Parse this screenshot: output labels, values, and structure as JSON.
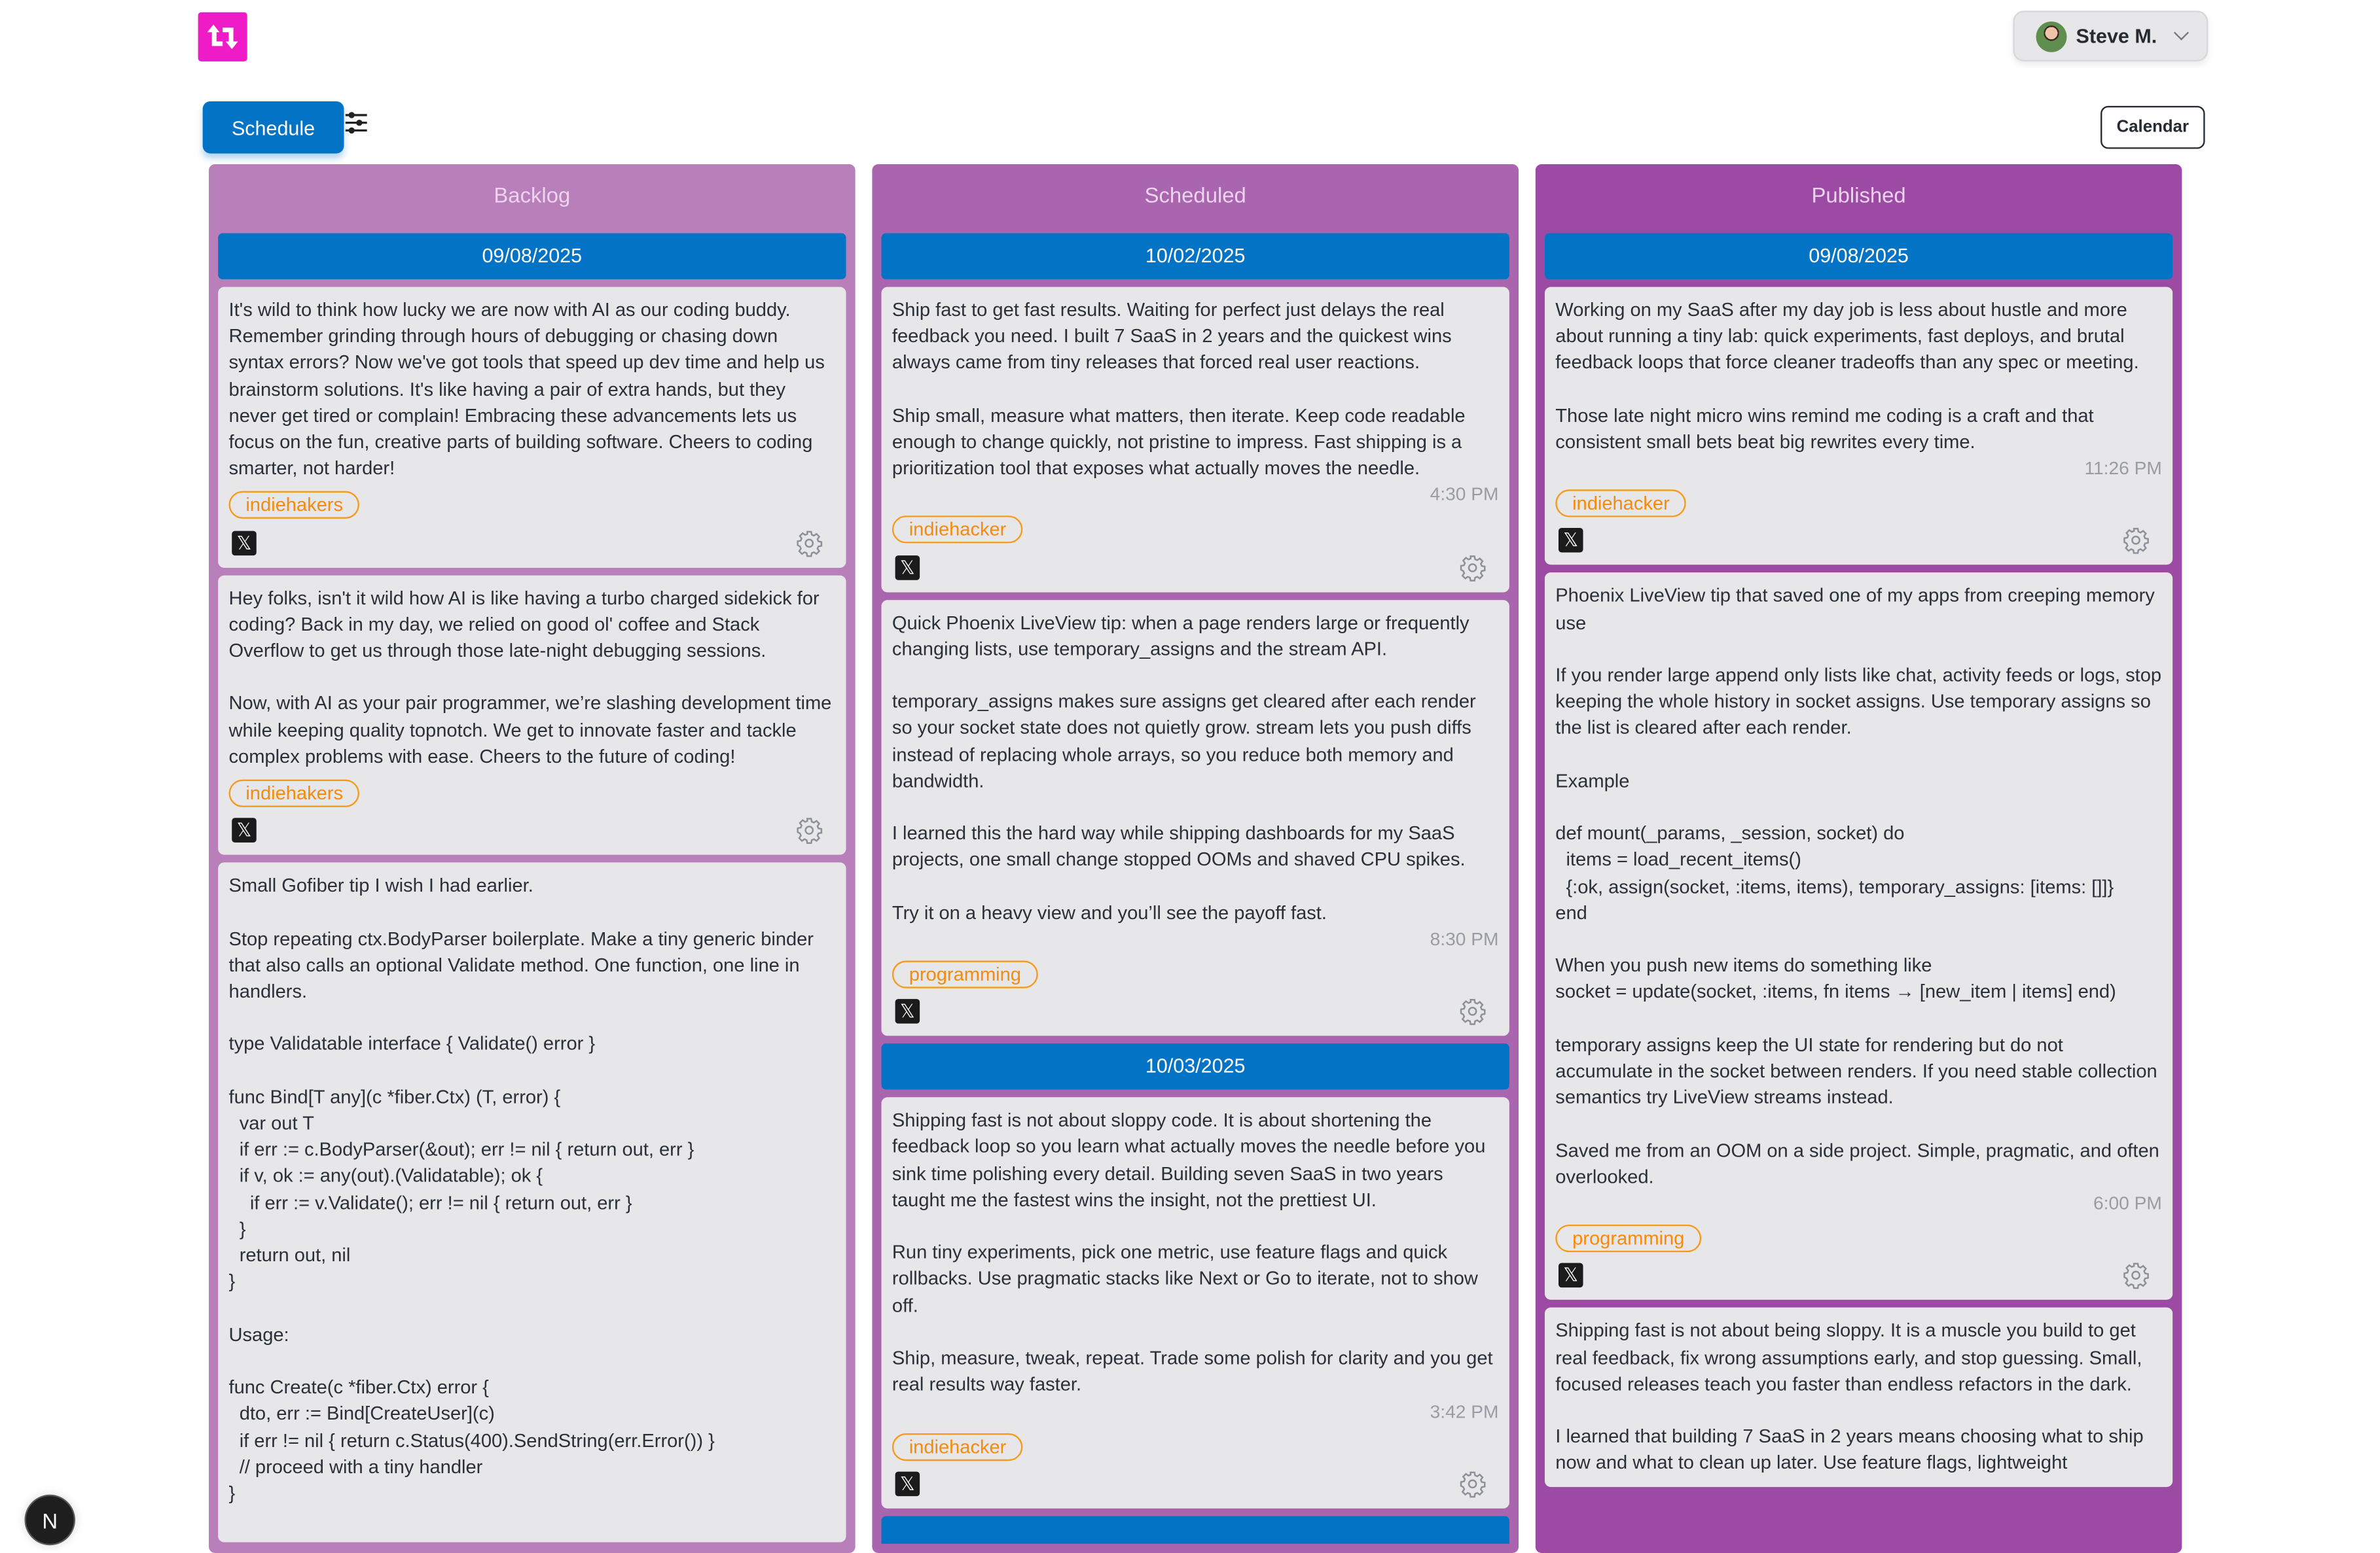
{
  "header": {
    "user_name": "Steve M.",
    "schedule_label": "Schedule",
    "calendar_label": "Calendar",
    "n_badge": "N"
  },
  "colors": {
    "backlog": "#b97fbb",
    "scheduled": "#a965ad",
    "published": "#9c4aa3",
    "date_bar": "#0373c6",
    "tag": "#f59a1b",
    "logo": "#ee1bc7"
  },
  "columns": [
    {
      "title": "Backlog",
      "groups": [
        {
          "date": "09/08/2025",
          "cards": [
            {
              "text": "It's wild to think how lucky we are now with AI as our coding buddy. Remember grinding through hours of debugging or chasing down syntax errors? Now we've got tools that speed up dev time and help us brainstorm solutions. It's like having a pair of extra hands, but they never get tired or complain! Embracing these advancements lets us focus on the fun, creative parts of building software. Cheers to coding smarter, not harder!",
              "time": "",
              "tag": "indiehakers"
            },
            {
              "text": "Hey folks, isn't it wild how AI is like having a turbo charged sidekick for coding? Back in my day, we relied on good ol' coffee and Stack Overflow to get us through those late-night debugging sessions.\n\nNow, with AI as your pair programmer, we’re slashing development time while keeping quality topnotch. We get to innovate faster and tackle complex problems with ease. Cheers to the future of coding!",
              "time": "",
              "tag": "indiehakers"
            },
            {
              "text": "Small Gofiber tip I wish I had earlier.\n\nStop repeating ctx.BodyParser boilerplate. Make a tiny generic binder that also calls an optional Validate method. One function, one line in handlers.\n\ntype Validatable interface { Validate() error }\n\nfunc Bind[T any](c *fiber.Ctx) (T, error) {\n  var out T\n  if err := c.BodyParser(&out); err != nil { return out, err }\n  if v, ok := any(out).(Validatable); ok {\n    if err := v.Validate(); err != nil { return out, err }\n  }\n  return out, nil\n}\n\nUsage:\n\nfunc Create(c *fiber.Ctx) error {\n  dto, err := Bind[CreateUser](c)\n  if err != nil { return c.Status(400).SendString(err.Error()) }\n  // proceed with a tiny handler\n}",
              "time": "",
              "tag": ""
            }
          ]
        }
      ]
    },
    {
      "title": "Scheduled",
      "groups": [
        {
          "date": "10/02/2025",
          "cards": [
            {
              "text": "Ship fast to get fast results. Waiting for perfect just delays the real feedback you need. I built 7 SaaS in 2 years and the quickest wins always came from tiny releases that forced real user reactions.\n\nShip small, measure what matters, then iterate. Keep code readable enough to change quickly, not pristine to impress. Fast shipping is a prioritization tool that exposes what actually moves the needle.",
              "time": "4:30 PM",
              "tag": "indiehacker"
            },
            {
              "text": "Quick Phoenix LiveView tip: when a page renders large or frequently changing lists, use temporary_assigns and the stream API.\n\ntemporary_assigns makes sure assigns get cleared after each render so your socket state does not quietly grow. stream lets you push diffs instead of replacing whole arrays, so you reduce both memory and bandwidth.\n\nI learned this the hard way while shipping dashboards for my SaaS projects, one small change stopped OOMs and shaved CPU spikes.\n\nTry it on a heavy view and you’ll see the payoff fast.",
              "time": "8:30 PM",
              "tag": "programming"
            }
          ]
        },
        {
          "date": "10/03/2025",
          "cards": [
            {
              "text": "Shipping fast is not about sloppy code. It is about shortening the feedback loop so you learn what actually moves the needle before you sink time polishing every detail. Building seven SaaS in two years taught me the fastest wins the insight, not the prettiest UI.\n\nRun tiny experiments, pick one metric, use feature flags and quick rollbacks. Use pragmatic stacks like Next or Go to iterate, not to show off.\n\nShip, measure, tweak, repeat. Trade some polish for clarity and you get real results way faster.",
              "time": "3:42 PM",
              "tag": "indiehacker"
            }
          ]
        },
        {
          "date": "",
          "cards": []
        }
      ]
    },
    {
      "title": "Published",
      "groups": [
        {
          "date": "09/08/2025",
          "cards": [
            {
              "text": "Working on my SaaS after my day job is less about hustle and more about running a tiny lab: quick experiments, fast deploys, and brutal feedback loops that force cleaner tradeoffs than any spec or meeting.\n\nThose late night micro wins remind me coding is a craft and that consistent small bets beat big rewrites every time.",
              "time": "11:26 PM",
              "tag": "indiehacker"
            },
            {
              "text": "Phoenix LiveView tip that saved one of my apps from creeping memory use\n\nIf you render large append only lists like chat, activity feeds or logs, stop keeping the whole history in socket assigns. Use temporary assigns so the list is cleared after each render.\n\nExample\n\ndef mount(_params, _session, socket) do\n  items = load_recent_items()\n  {:ok, assign(socket, :items, items), temporary_assigns: [items: []]}\nend\n\nWhen you push new items do something like\nsocket = update(socket, :items, fn items → [new_item | items] end)\n\ntemporary assigns keep the UI state for rendering but do not accumulate in the socket between renders. If you need stable collection semantics try LiveView streams instead.\n\nSaved me from an OOM on a side project. Simple, pragmatic, and often overlooked.",
              "time": "6:00 PM",
              "tag": "programming"
            },
            {
              "text": "Shipping fast is not about being sloppy. It is a muscle you build to get real feedback, fix wrong assumptions early, and stop guessing. Small, focused releases teach you faster than endless refactors in the dark.\n\nI learned that building 7 SaaS in 2 years means choosing what to ship now and what to clean up later. Use feature flags, lightweight",
              "time": "",
              "tag": ""
            }
          ]
        }
      ]
    }
  ]
}
